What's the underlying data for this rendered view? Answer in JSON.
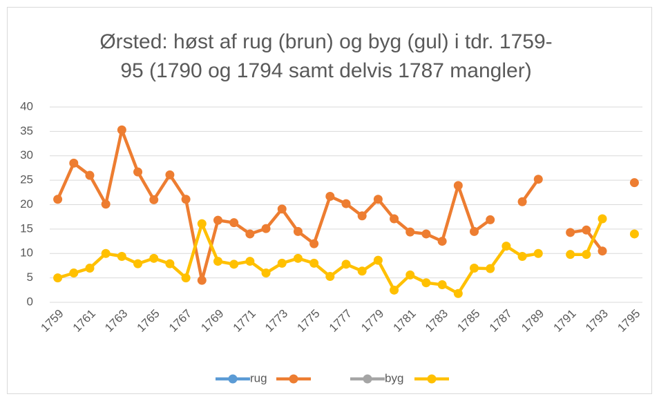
{
  "chart_data": {
    "type": "line",
    "title": [
      "Ørsted: høst af rug (brun) og byg (gul) i tdr. 1759-",
      "95 (1790 og 1794 samt delvis 1787 mangler)"
    ],
    "categories": [
      "1759",
      null,
      "1761",
      null,
      "1763",
      null,
      "1765",
      null,
      "1767",
      null,
      "1769",
      null,
      "1771",
      null,
      "1773",
      null,
      "1775",
      null,
      "1777",
      null,
      "1779",
      null,
      "1781",
      null,
      "1783",
      null,
      "1785",
      null,
      "1787",
      null,
      "1789",
      null,
      "1791",
      null,
      "1793",
      null,
      "1795"
    ],
    "series": [
      {
        "name": "rug",
        "color": "#5b9bd5",
        "values": [
          null,
          null,
          null,
          null,
          null,
          null,
          null,
          null,
          null,
          null,
          null,
          null,
          null,
          null,
          null,
          null,
          null,
          null,
          null,
          null,
          null,
          null,
          null,
          null,
          null,
          null,
          null,
          null,
          null,
          null,
          null,
          null,
          null,
          null,
          null,
          null,
          null
        ]
      },
      {
        "color": "#ed7d31",
        "values": [
          21.1,
          28.5,
          26,
          20.1,
          35.3,
          26.7,
          21,
          26.1,
          21.1,
          4.5,
          16.8,
          16.3,
          14,
          15.1,
          19.1,
          14.5,
          12,
          21.7,
          20.2,
          17.7,
          21.1,
          17.1,
          14.4,
          14,
          12.5,
          23.9,
          14.5,
          16.9,
          null,
          20.6,
          25.2,
          null,
          14.3,
          14.8,
          10.5,
          null,
          24.5
        ]
      },
      {
        "name": "byg",
        "color": "#a5a5a5",
        "values": [
          null,
          null,
          null,
          null,
          null,
          null,
          null,
          null,
          null,
          null,
          null,
          null,
          null,
          null,
          null,
          null,
          null,
          null,
          null,
          null,
          null,
          null,
          null,
          null,
          null,
          null,
          null,
          null,
          null,
          null,
          null,
          null,
          null,
          null,
          null,
          null,
          null
        ]
      },
      {
        "color": "#ffc000",
        "values": [
          5,
          6,
          7,
          10,
          9.4,
          7.9,
          9,
          7.9,
          5,
          16.1,
          8.4,
          7.8,
          8.4,
          6,
          8,
          9,
          8,
          5.3,
          7.8,
          6.4,
          8.6,
          2.5,
          5.6,
          4,
          3.6,
          1.8,
          7,
          6.9,
          11.5,
          9.4,
          10,
          null,
          9.8,
          9.8,
          17.1,
          null,
          14
        ]
      }
    ],
    "ylim": [
      0,
      40
    ],
    "yticks": [
      0,
      5,
      10,
      15,
      20,
      25,
      30,
      35,
      40
    ],
    "grid": true,
    "legend": "bottom"
  }
}
